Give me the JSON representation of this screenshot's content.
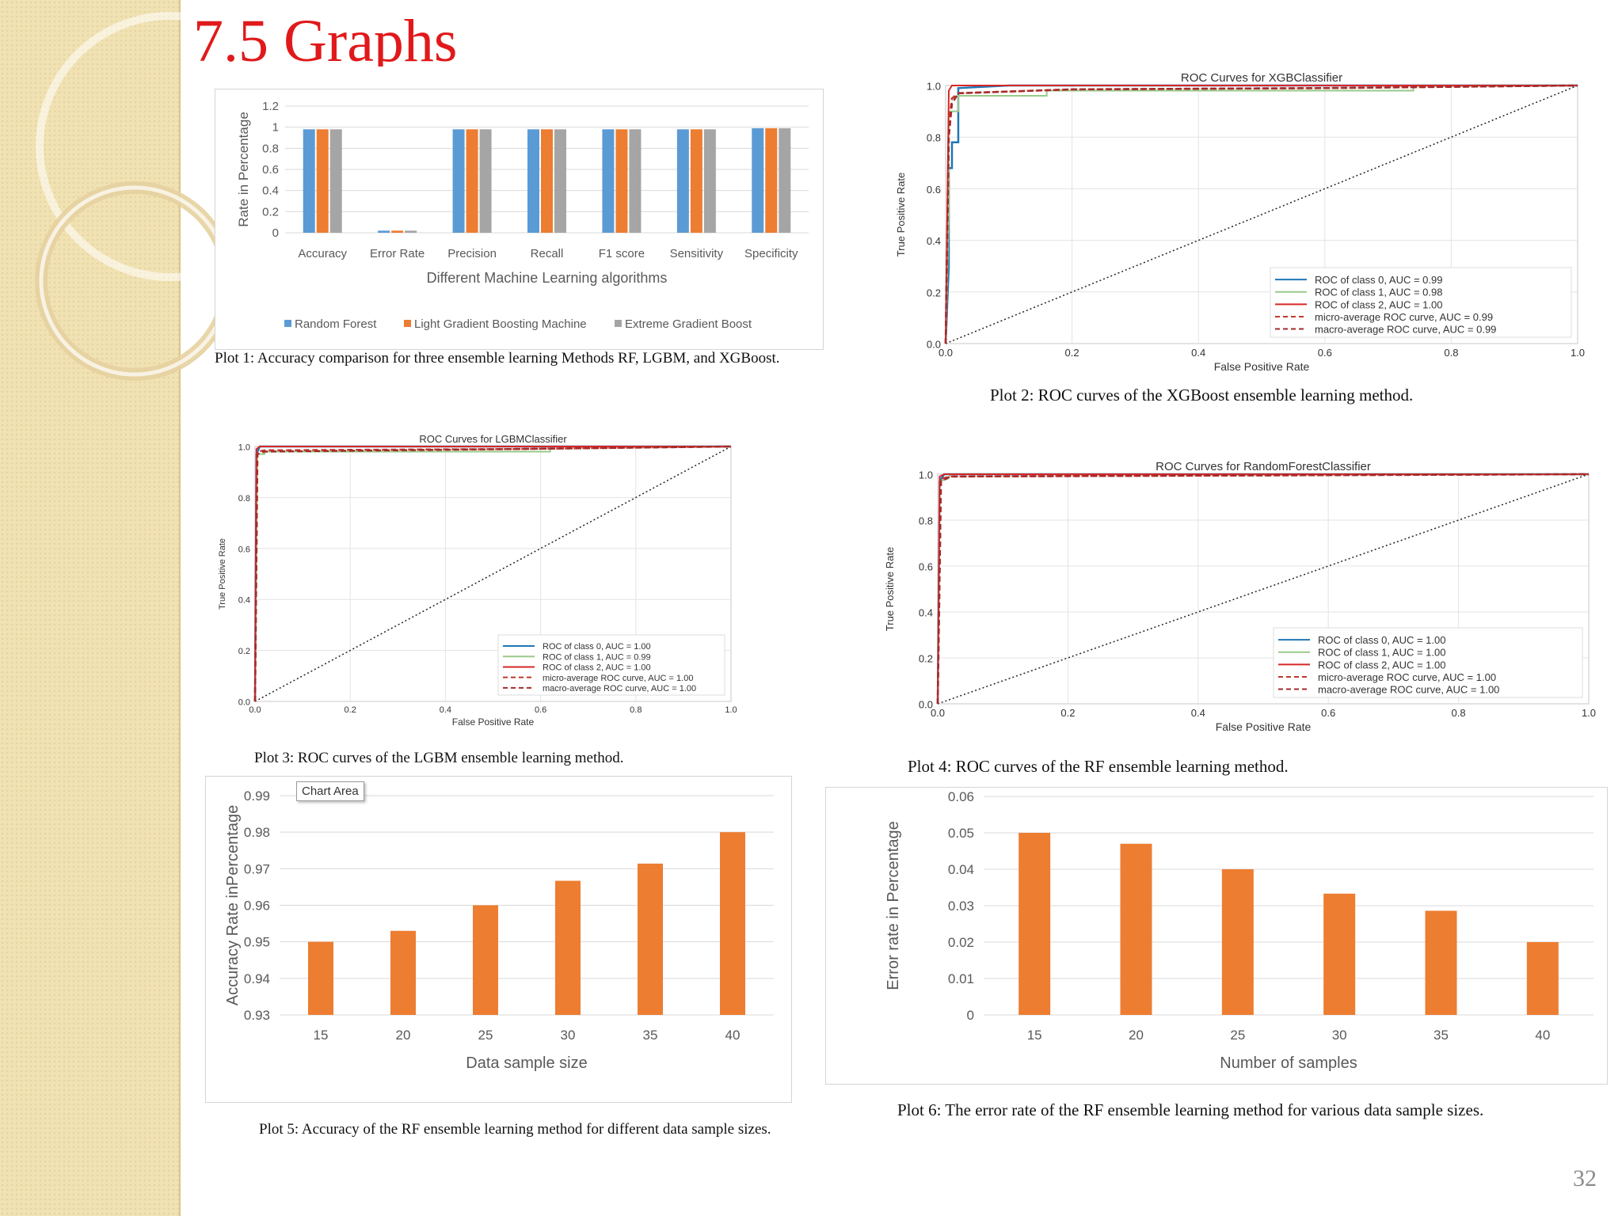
{
  "slide": {
    "title": "7.5 Graphs",
    "page_number": "32"
  },
  "captions": {
    "plot1": "Plot 1: Accuracy comparison for three ensemble learning Methods RF, LGBM, and XGBoost.",
    "plot2": "Plot 2: ROC curves of the XGBoost ensemble learning method.",
    "plot3": "Plot 3: ROC curves of the LGBM ensemble learning method.",
    "plot4": "Plot 4: ROC curves of the RF ensemble learning method.",
    "plot5": "Plot 5: Accuracy of the RF ensemble learning method for different data sample sizes.",
    "plot6": "Plot 6: The error rate of the RF ensemble learning method for various data sample sizes."
  },
  "tooltip": {
    "chart_area": "Chart Area"
  },
  "colors": {
    "title": "#e0191b",
    "rf": "#5b9bd5",
    "lgbm": "#ed7d31",
    "xgb": "#a5a5a5",
    "bar": "#ed7d31",
    "roc0": "#1f77b4",
    "roc1": "#98c98a",
    "roc2": "#d62728",
    "avg": "#c0392b"
  },
  "chart_data": [
    {
      "type": "bar",
      "title": "",
      "xlabel": "Different Machine Learning algorithms",
      "ylabel": "Rate in Percentage",
      "ylim": [
        0,
        1.2
      ],
      "yticks": [
        "0",
        "0.2",
        "0.4",
        "0.6",
        "0.8",
        "1",
        "1.2"
      ],
      "categories": [
        "Accuracy",
        "Error Rate",
        "Precision",
        "Recall",
        "F1 score",
        "Sensitivity",
        "Specificity"
      ],
      "series": [
        {
          "name": "Random Forest",
          "values": [
            0.98,
            0.02,
            0.98,
            0.98,
            0.98,
            0.98,
            0.99
          ]
        },
        {
          "name": "Light Gradient Boosting Machine",
          "values": [
            0.98,
            0.02,
            0.98,
            0.98,
            0.98,
            0.98,
            0.99
          ]
        },
        {
          "name": "Extreme Gradient Boost",
          "values": [
            0.98,
            0.02,
            0.98,
            0.98,
            0.98,
            0.98,
            0.99
          ]
        }
      ],
      "legend": "bottom",
      "grid": true
    },
    {
      "type": "line",
      "title": "ROC Curves for XGBClassifier",
      "xlabel": "False Positive Rate",
      "ylabel": "True Positive Rate",
      "xlim": [
        0,
        1
      ],
      "ylim": [
        0,
        1
      ],
      "ticks": [
        "0.0",
        "0.2",
        "0.4",
        "0.6",
        "0.8",
        "1.0"
      ],
      "series": [
        {
          "name": "ROC of class 0, AUC = 0.99",
          "x": [
            0,
            0.005,
            0.005,
            0.01,
            0.01,
            0.02,
            0.02,
            0.1,
            1
          ],
          "y": [
            0,
            0.3,
            0.68,
            0.68,
            0.78,
            0.78,
            0.99,
            1.0,
            1.0
          ]
        },
        {
          "name": "ROC of class 1, AUC = 0.98",
          "x": [
            0,
            0.005,
            0.005,
            0.02,
            0.02,
            0.16,
            0.16,
            0.74,
            0.74,
            1
          ],
          "y": [
            0,
            0.5,
            0.9,
            0.9,
            0.96,
            0.96,
            0.98,
            0.98,
            1.0,
            1.0
          ]
        },
        {
          "name": "ROC of class 2, AUC = 1.00",
          "x": [
            0,
            0.005,
            0.01,
            1
          ],
          "y": [
            0,
            0.98,
            1.0,
            1.0
          ]
        },
        {
          "name": "micro-average ROC curve, AUC = 0.99",
          "x": [
            0,
            0.005,
            0.01,
            0.02,
            0.2,
            0.6,
            1
          ],
          "y": [
            0,
            0.85,
            0.95,
            0.97,
            0.985,
            0.99,
            1.0
          ]
        },
        {
          "name": "macro-average ROC curve, AUC = 0.99",
          "x": [
            0,
            0.005,
            0.01,
            0.02,
            0.2,
            0.6,
            1
          ],
          "y": [
            0,
            0.8,
            0.93,
            0.97,
            0.985,
            0.99,
            1.0
          ]
        }
      ],
      "legend": "bottom-right",
      "grid": true
    },
    {
      "type": "line",
      "title": "ROC Curves for LGBMClassifier",
      "xlabel": "False Positive Rate",
      "ylabel": "True Positive Rate",
      "xlim": [
        0,
        1
      ],
      "ylim": [
        0,
        1
      ],
      "ticks": [
        "0.0",
        "0.2",
        "0.4",
        "0.6",
        "0.8",
        "1.0"
      ],
      "series": [
        {
          "name": "ROC of class 0, AUC = 1.00",
          "x": [
            0,
            0.003,
            0.01,
            1
          ],
          "y": [
            0,
            0.97,
            1.0,
            1.0
          ]
        },
        {
          "name": "ROC of class 1, AUC = 0.99",
          "x": [
            0,
            0.005,
            0.02,
            0.02,
            0.62,
            0.62,
            1
          ],
          "y": [
            0,
            0.97,
            0.97,
            0.98,
            0.98,
            1.0,
            1.0
          ]
        },
        {
          "name": "ROC of class 2, AUC = 1.00",
          "x": [
            0,
            0.003,
            0.01,
            1
          ],
          "y": [
            0,
            0.99,
            1.0,
            1.0
          ]
        },
        {
          "name": "micro-average ROC curve, AUC = 1.00",
          "x": [
            0,
            0.005,
            0.02,
            0.54,
            1
          ],
          "y": [
            0,
            0.98,
            0.985,
            0.99,
            1.0
          ]
        },
        {
          "name": "macro-average ROC curve, AUC = 1.00",
          "x": [
            0,
            0.005,
            0.02,
            0.54,
            1
          ],
          "y": [
            0,
            0.97,
            0.98,
            0.99,
            1.0
          ]
        }
      ],
      "legend": "bottom-right",
      "grid": true
    },
    {
      "type": "line",
      "title": "ROC Curves for RandomForestClassifier",
      "xlabel": "False Positive Rate",
      "ylabel": "True Positive Rate",
      "xlim": [
        0,
        1
      ],
      "ylim": [
        0,
        1
      ],
      "ticks": [
        "0.0",
        "0.2",
        "0.4",
        "0.6",
        "0.8",
        "1.0"
      ],
      "series": [
        {
          "name": "ROC of class 0, AUC = 1.00",
          "x": [
            0,
            0.003,
            0.01,
            1
          ],
          "y": [
            0,
            0.97,
            1.0,
            1.0
          ]
        },
        {
          "name": "ROC of class 1, AUC = 1.00",
          "x": [
            0,
            0.003,
            0.005,
            0.015,
            0.02,
            1
          ],
          "y": [
            0,
            0.95,
            0.97,
            0.98,
            1.0,
            1.0
          ]
        },
        {
          "name": "ROC of class 2, AUC = 1.00",
          "x": [
            0,
            0.003,
            0.01,
            1
          ],
          "y": [
            0,
            0.99,
            1.0,
            1.0
          ]
        },
        {
          "name": "micro-average ROC curve, AUC = 1.00",
          "x": [
            0,
            0.005,
            0.02,
            1
          ],
          "y": [
            0,
            0.98,
            0.99,
            1.0
          ]
        },
        {
          "name": "macro-average ROC curve, AUC = 1.00",
          "x": [
            0,
            0.005,
            0.02,
            1
          ],
          "y": [
            0,
            0.97,
            0.99,
            1.0
          ]
        }
      ],
      "legend": "bottom-right",
      "grid": true
    },
    {
      "type": "bar",
      "title": "",
      "xlabel": "Data sample size",
      "ylabel": "Accuracy Rate inPercentage",
      "ylim": [
        0.93,
        0.99
      ],
      "yticks": [
        "0.93",
        "0.94",
        "0.95",
        "0.96",
        "0.97",
        "0.98",
        "0.99"
      ],
      "categories": [
        "15",
        "20",
        "25",
        "30",
        "35",
        "40"
      ],
      "values": [
        0.95,
        0.953,
        0.96,
        0.9667,
        0.9714,
        0.98
      ],
      "grid": true
    },
    {
      "type": "bar",
      "title": "",
      "xlabel": "Number of samples",
      "ylabel": "Error rate in Percentage",
      "ylim": [
        0,
        0.06
      ],
      "yticks": [
        "0",
        "0.01",
        "0.02",
        "0.03",
        "0.04",
        "0.05",
        "0.06"
      ],
      "categories": [
        "15",
        "20",
        "25",
        "30",
        "35",
        "40"
      ],
      "values": [
        0.05,
        0.047,
        0.04,
        0.0333,
        0.0286,
        0.02
      ],
      "grid": true
    }
  ]
}
